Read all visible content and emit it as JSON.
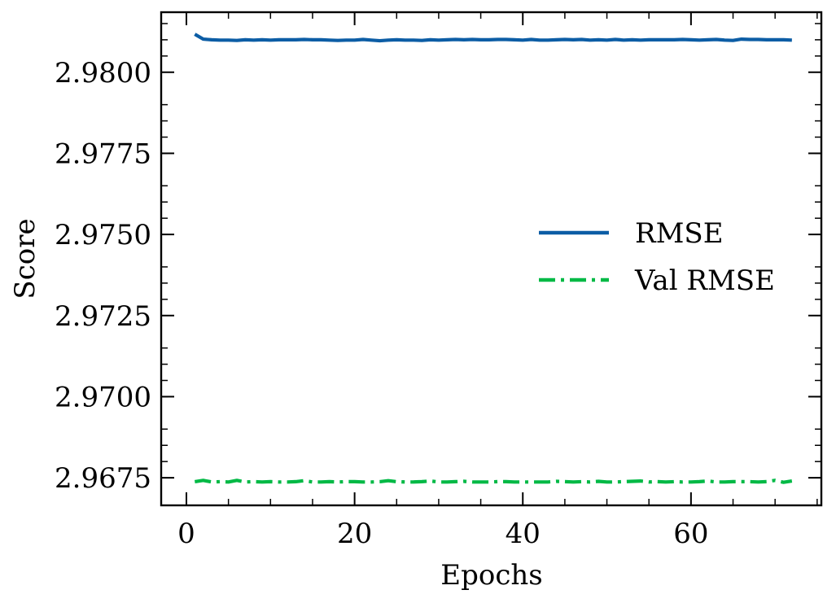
{
  "chart_data": {
    "type": "line",
    "title": "",
    "xlabel": "Epochs",
    "ylabel": "Score",
    "xlim": [
      -3,
      75.5
    ],
    "ylim": [
      2.96665,
      2.98185
    ],
    "xticks": [
      0,
      20,
      40,
      60
    ],
    "xtick_labels": [
      "0",
      "20",
      "40",
      "60"
    ],
    "yticks": [
      2.9675,
      2.97,
      2.9725,
      2.975,
      2.9775,
      2.98
    ],
    "ytick_labels": [
      "2.9675",
      "2.9700",
      "2.9725",
      "2.9750",
      "2.9775",
      "2.9800"
    ],
    "legend_position": "center-right",
    "grid": false,
    "series": [
      {
        "name": "RMSE",
        "color": "#0C5DA5",
        "style": "solid",
        "x": [
          1,
          2,
          3,
          4,
          5,
          6,
          7,
          8,
          9,
          10,
          11,
          12,
          13,
          14,
          15,
          16,
          17,
          18,
          19,
          20,
          21,
          22,
          23,
          24,
          25,
          26,
          27,
          28,
          29,
          30,
          31,
          32,
          33,
          34,
          35,
          36,
          37,
          38,
          39,
          40,
          41,
          42,
          43,
          44,
          45,
          46,
          47,
          48,
          49,
          50,
          51,
          52,
          53,
          54,
          55,
          56,
          57,
          58,
          59,
          60,
          61,
          62,
          63,
          64,
          65,
          66,
          67,
          68,
          69,
          70,
          71,
          72
        ],
        "values": [
          2.98117,
          2.98102,
          2.981,
          2.98099,
          2.98099,
          2.98098,
          2.981,
          2.98099,
          2.981,
          2.98099,
          2.981,
          2.981,
          2.981,
          2.98101,
          2.981,
          2.981,
          2.98099,
          2.98098,
          2.98099,
          2.98099,
          2.98101,
          2.98099,
          2.98097,
          2.98099,
          2.981,
          2.98099,
          2.98099,
          2.98098,
          2.981,
          2.98099,
          2.981,
          2.98101,
          2.981,
          2.98101,
          2.981,
          2.981,
          2.98101,
          2.98101,
          2.981,
          2.98099,
          2.98101,
          2.98099,
          2.98099,
          2.981,
          2.98101,
          2.981,
          2.98101,
          2.98099,
          2.981,
          2.98099,
          2.98101,
          2.98099,
          2.981,
          2.98099,
          2.981,
          2.981,
          2.981,
          2.981,
          2.98101,
          2.981,
          2.98099,
          2.981,
          2.98101,
          2.98099,
          2.98098,
          2.98102,
          2.98101,
          2.98101,
          2.981,
          2.981,
          2.981,
          2.98099
        ]
      },
      {
        "name": "Val RMSE",
        "color": "#00B945",
        "style": "dashdot",
        "x": [
          1,
          2,
          3,
          4,
          5,
          6,
          7,
          8,
          9,
          10,
          11,
          12,
          13,
          14,
          15,
          16,
          17,
          18,
          19,
          20,
          21,
          22,
          23,
          24,
          25,
          26,
          27,
          28,
          29,
          30,
          31,
          32,
          33,
          34,
          35,
          36,
          37,
          38,
          39,
          40,
          41,
          42,
          43,
          44,
          45,
          46,
          47,
          48,
          49,
          50,
          51,
          52,
          53,
          54,
          55,
          56,
          57,
          58,
          59,
          60,
          61,
          62,
          63,
          64,
          65,
          66,
          67,
          68,
          69,
          70,
          71,
          72
        ],
        "values": [
          2.96738,
          2.96742,
          2.96737,
          2.96738,
          2.96737,
          2.96742,
          2.96737,
          2.96738,
          2.96737,
          2.96738,
          2.96737,
          2.96737,
          2.96738,
          2.96741,
          2.96737,
          2.96737,
          2.96738,
          2.96737,
          2.96738,
          2.96738,
          2.96737,
          2.96737,
          2.96738,
          2.96741,
          2.96738,
          2.96737,
          2.96737,
          2.96738,
          2.9674,
          2.96737,
          2.96737,
          2.96738,
          2.96739,
          2.96737,
          2.96737,
          2.96737,
          2.96738,
          2.96738,
          2.96737,
          2.96737,
          2.96737,
          2.96737,
          2.96737,
          2.96739,
          2.96738,
          2.96737,
          2.96738,
          2.96737,
          2.96739,
          2.96737,
          2.96737,
          2.96738,
          2.96739,
          2.9674,
          2.96737,
          2.96738,
          2.96737,
          2.96738,
          2.96737,
          2.96737,
          2.96738,
          2.9674,
          2.96737,
          2.96737,
          2.96738,
          2.96738,
          2.96738,
          2.96737,
          2.96738,
          2.96742,
          2.96736,
          2.9674
        ]
      }
    ]
  }
}
